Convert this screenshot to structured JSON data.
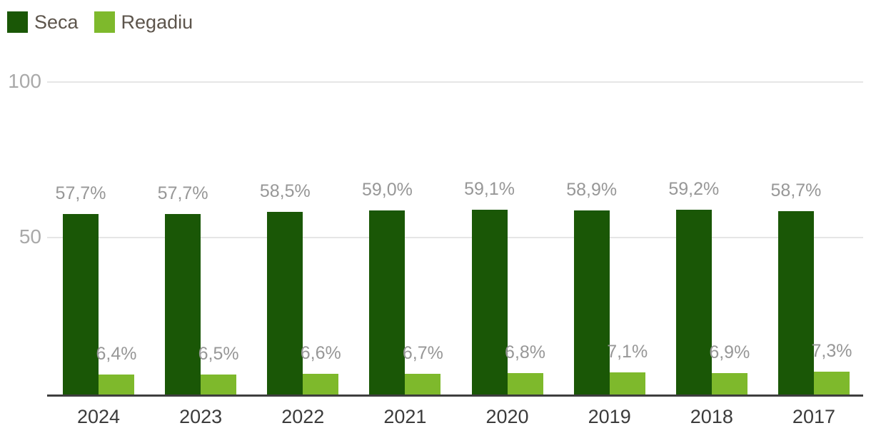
{
  "chart_data": {
    "type": "bar",
    "title": "",
    "xlabel": "",
    "ylabel": "",
    "categories": [
      "2024",
      "2023",
      "2022",
      "2021",
      "2020",
      "2019",
      "2018",
      "2017"
    ],
    "series": [
      {
        "name": "Seca",
        "color": "#1a5706",
        "values": [
          57.7,
          57.7,
          58.5,
          59.0,
          59.1,
          58.9,
          59.2,
          58.7
        ],
        "labels": [
          "57,7%",
          "57,7%",
          "58,5%",
          "59,0%",
          "59,1%",
          "58,9%",
          "59,2%",
          "58,7%"
        ]
      },
      {
        "name": "Regadiu",
        "color": "#7eb92c",
        "values": [
          6.4,
          6.5,
          6.6,
          6.7,
          6.8,
          7.1,
          6.9,
          7.3
        ],
        "labels": [
          "6,4%",
          "6,5%",
          "6,6%",
          "6,7%",
          "6,8%",
          "7,1%",
          "6,9%",
          "7,3%"
        ]
      }
    ],
    "ylim": [
      0,
      100
    ],
    "yticks": [
      100,
      50
    ],
    "ytick_labels": [
      "100",
      "50"
    ],
    "grid": true,
    "legend_position": "top-left",
    "colors": {
      "grid": "#e6e6e6",
      "axis": "#3e3e3e",
      "value_label": "#979797",
      "ytick_label": "#a9a9a9",
      "xtick_label": "#3b3b3b",
      "legend_text": "#5d554c"
    }
  }
}
